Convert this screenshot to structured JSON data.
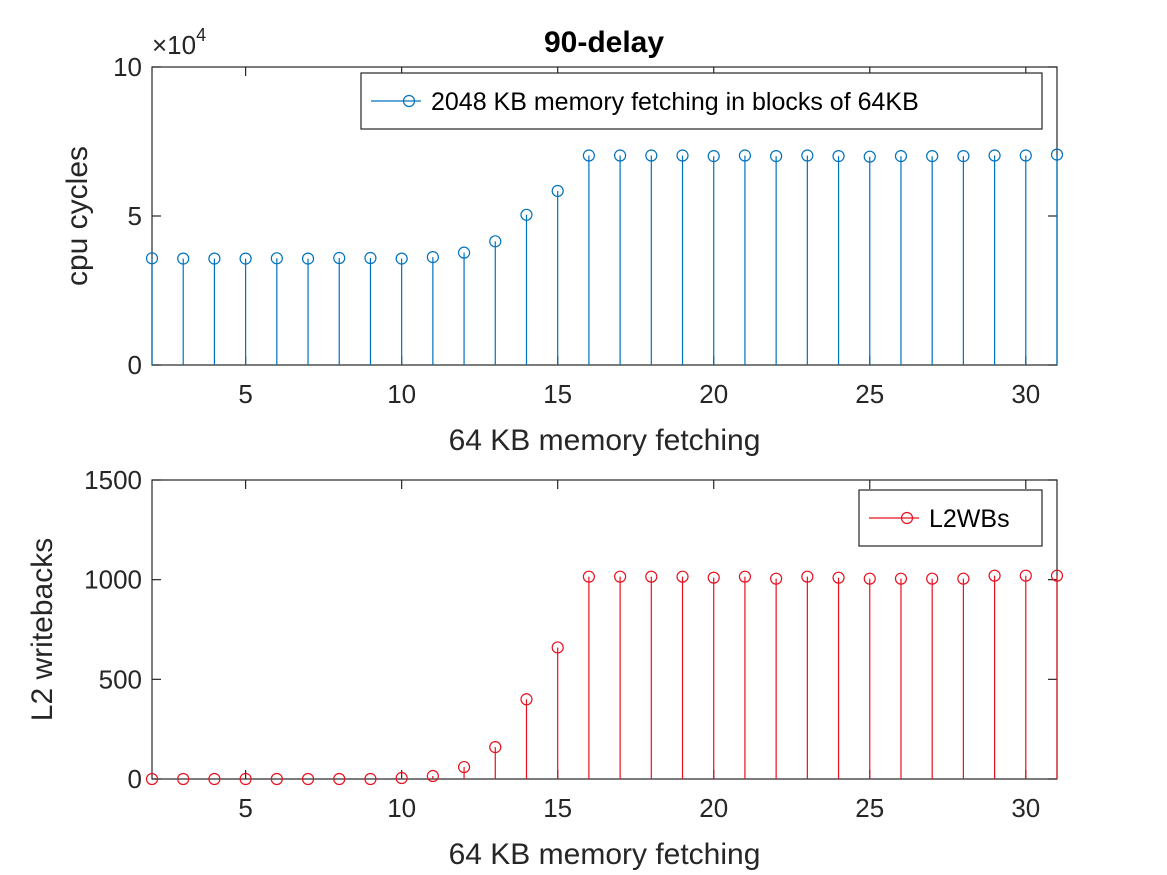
{
  "figure": {
    "title": "90-delay"
  },
  "chart_data": [
    {
      "type": "stem",
      "xlabel": "64 KB memory fetching",
      "ylabel": "cpu cycles",
      "xlim": [
        2,
        31
      ],
      "ylim": [
        0,
        100000
      ],
      "xticks": [
        5,
        10,
        15,
        20,
        25,
        30
      ],
      "yticks": [
        0,
        50000,
        100000
      ],
      "ytick_labels": [
        "0",
        "5",
        "10"
      ],
      "y_multiplier_base": "×10",
      "y_multiplier_exp": "4",
      "legend_position": "top-right",
      "color": "#0072BD",
      "series": [
        {
          "name": "2048 KB memory fetching in blocks of 64KB",
          "x": [
            2,
            3,
            4,
            5,
            6,
            7,
            8,
            9,
            10,
            11,
            12,
            13,
            14,
            15,
            16,
            17,
            18,
            19,
            20,
            21,
            22,
            23,
            24,
            25,
            26,
            27,
            28,
            29,
            30,
            31
          ],
          "values": [
            35800,
            35700,
            35700,
            35700,
            35800,
            35700,
            35900,
            35900,
            35700,
            36200,
            37700,
            41500,
            50400,
            58400,
            70300,
            70300,
            70300,
            70300,
            70100,
            70300,
            70100,
            70300,
            70100,
            69900,
            70100,
            70100,
            70100,
            70300,
            70300,
            70600
          ]
        }
      ]
    },
    {
      "type": "stem",
      "xlabel": "64 KB memory fetching",
      "ylabel": "L2 writebacks",
      "xlim": [
        2,
        31
      ],
      "ylim": [
        0,
        1500
      ],
      "xticks": [
        5,
        10,
        15,
        20,
        25,
        30
      ],
      "yticks": [
        0,
        500,
        1000,
        1500
      ],
      "ytick_labels": [
        "0",
        "500",
        "1000",
        "1500"
      ],
      "legend_position": "top-right",
      "color": "#E8101E",
      "series": [
        {
          "name": "L2WBs",
          "x": [
            2,
            3,
            4,
            5,
            6,
            7,
            8,
            9,
            10,
            11,
            12,
            13,
            14,
            15,
            16,
            17,
            18,
            19,
            20,
            21,
            22,
            23,
            24,
            25,
            26,
            27,
            28,
            29,
            30,
            31
          ],
          "values": [
            0,
            0,
            0,
            0,
            0,
            0,
            0,
            0,
            5,
            15,
            60,
            160,
            400,
            660,
            1015,
            1015,
            1015,
            1015,
            1010,
            1015,
            1005,
            1015,
            1010,
            1005,
            1005,
            1005,
            1005,
            1020,
            1020,
            1020
          ]
        }
      ]
    }
  ]
}
